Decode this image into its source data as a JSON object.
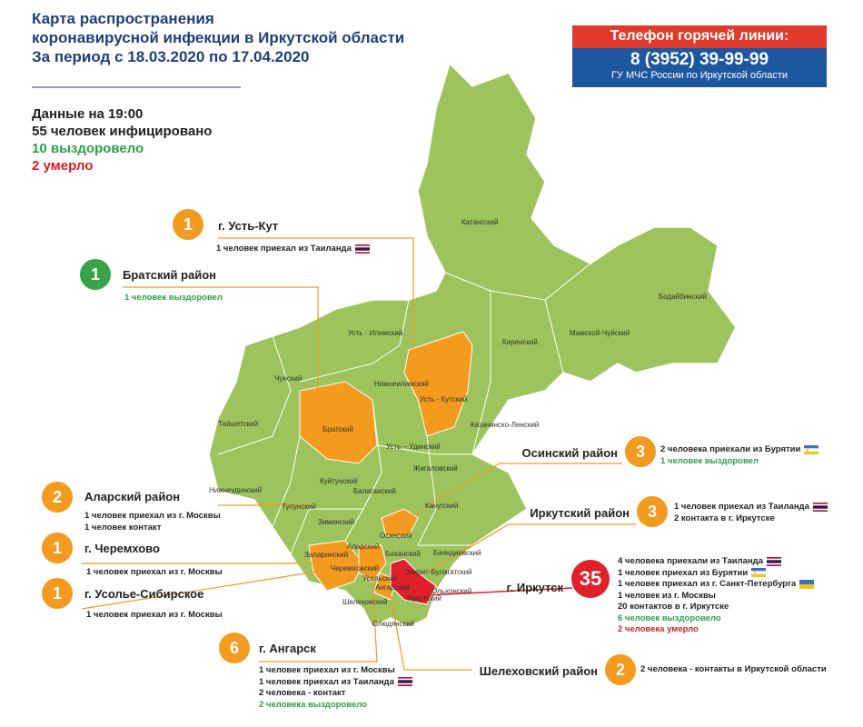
{
  "header": {
    "title": [
      "Карта распространения",
      "коронавирусной инфекции в Иркутской области",
      "За период с 18.03.2020 по 17.04.2020"
    ]
  },
  "hotline": {
    "label": "Телефон горячей линии:",
    "phone": "8 (3952) 39-99-99",
    "org": "ГУ МЧС России по Иркутской области"
  },
  "summary": {
    "time": "Данные на 19:00",
    "infected": "55 человек инфицировано",
    "recovered": "10 выздоровело",
    "died": "2 умерло"
  },
  "map": {
    "districts": [
      "Катангский",
      "Бодайбинский",
      "Мамской-Чуйский",
      "Киренский",
      "Усть - Илимский",
      "Чунский",
      "Нижнеилимский",
      "Усть - Кутский",
      "Тайшетский",
      "Братский",
      "Казачинско-Ленский",
      "Усть – Удинский",
      "Нижнеудинский",
      "Куйтунский",
      "Жигаловский",
      "Балаганский",
      "Тулунский",
      "Качугский",
      "Зиминский",
      "Осинский",
      "Аларский",
      "Заларинский",
      "Черемховский",
      "Боханский",
      "Баяндаевский",
      "Усольский",
      "Ангарский",
      "Эхирит-Булагатский",
      "Ольхонский",
      "Шелеховский",
      "Иркутский",
      "Слюдянский"
    ]
  },
  "callouts": [
    {
      "count": "1",
      "title": "г. Усть-Кут",
      "notes": [
        "1 человек приехал из Таиланда"
      ]
    },
    {
      "count": "1",
      "title": "Братский район",
      "notes": [
        "1 человек выздоровел"
      ]
    },
    {
      "count": "2",
      "title": "Аларский район",
      "notes": [
        "1 человек приехал из г. Москвы",
        "1 человек контакт"
      ]
    },
    {
      "count": "1",
      "title": "г. Черемхово",
      "notes": [
        "1 человек приехал из г. Москвы"
      ]
    },
    {
      "count": "1",
      "title": "г. Усолье-Сибирское",
      "notes": [
        "1 человек приехал из г. Москвы"
      ]
    },
    {
      "count": "6",
      "title": "г. Ангарск",
      "notes": [
        "1 человек приехал из г. Москвы",
        "1 человек приехал из Таиланда",
        "2 человека - контакт",
        "2 человека выздоровело"
      ]
    },
    {
      "count": "3",
      "title": "Осинский район",
      "notes": [
        "2 человека приехали из Бурятии",
        "1 человек выздоровел"
      ]
    },
    {
      "count": "3",
      "title": "Иркутский район",
      "notes": [
        "1 человек приехал из Таиланда",
        "2 контакта в г. Иркутске"
      ]
    },
    {
      "count": "35",
      "title": "г. Иркутск",
      "notes": [
        "4 человека приехали из Таиланда",
        "1 человек приехал из Бурятии",
        "1 человек приехал из г. Санкт-Петербурга",
        "1 человек из г. Москвы",
        "20 контактов в г. Иркутске",
        "6 человек выздоровело",
        "2 человека умерло"
      ]
    },
    {
      "count": "2",
      "title": "Шелеховский район",
      "notes": [
        "2 человека - контакты  в Иркутской области"
      ]
    }
  ]
}
